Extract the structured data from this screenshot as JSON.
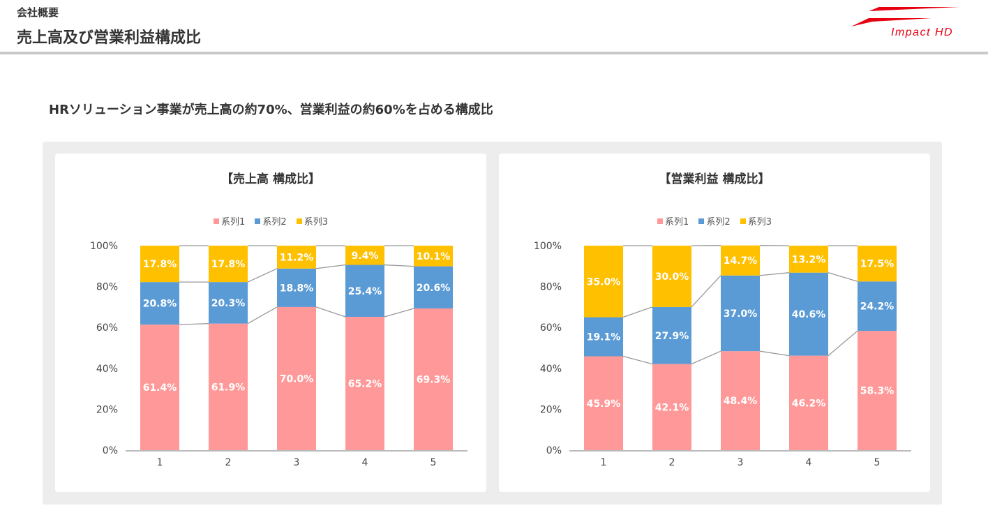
{
  "header": {
    "section": "会社概要",
    "title": "売上高及び営業利益構成比",
    "logo_text": "Impact HD"
  },
  "lead": "HRソリューション事業が売上高の約70%、営業利益の約60%を占める構成比",
  "colors": {
    "series1": "#FF9999",
    "series2": "#5B9BD5",
    "series3": "#FFC000",
    "brand": "#E60012"
  },
  "chart_data": [
    {
      "type": "bar",
      "stacked": "percent",
      "title": "【売上高 構成比】",
      "categories": [
        "1",
        "2",
        "3",
        "4",
        "5"
      ],
      "series": [
        {
          "name": "系列1",
          "values": [
            61.4,
            61.9,
            70.0,
            65.2,
            69.3
          ]
        },
        {
          "name": "系列2",
          "values": [
            20.8,
            20.3,
            18.8,
            25.4,
            20.6
          ]
        },
        {
          "name": "系列3",
          "values": [
            17.8,
            17.8,
            11.2,
            9.4,
            10.1
          ]
        }
      ],
      "yticks": [
        "0%",
        "20%",
        "40%",
        "60%",
        "80%",
        "100%"
      ],
      "ylim": [
        0,
        100
      ],
      "legend": "top",
      "labels": [
        "61.4%",
        "61.9%",
        "70.0%",
        "65.2%",
        "69.3%",
        "20.8%",
        "20.3%",
        "18.8%",
        "25.4%",
        "20.6%",
        "17.8%",
        "17.8%",
        "11.2%",
        "9.4%",
        "10.1%"
      ]
    },
    {
      "type": "bar",
      "stacked": "percent",
      "title": "【営業利益 構成比】",
      "categories": [
        "1",
        "2",
        "3",
        "4",
        "5"
      ],
      "series": [
        {
          "name": "系列1",
          "values": [
            45.9,
            42.1,
            48.4,
            46.2,
            58.3
          ]
        },
        {
          "name": "系列2",
          "values": [
            19.1,
            27.9,
            37.0,
            40.6,
            24.2
          ]
        },
        {
          "name": "系列3",
          "values": [
            35.0,
            30.0,
            14.7,
            13.2,
            17.5
          ]
        }
      ],
      "yticks": [
        "0%",
        "20%",
        "40%",
        "60%",
        "80%",
        "100%"
      ],
      "ylim": [
        0,
        100
      ],
      "legend": "top"
    }
  ]
}
